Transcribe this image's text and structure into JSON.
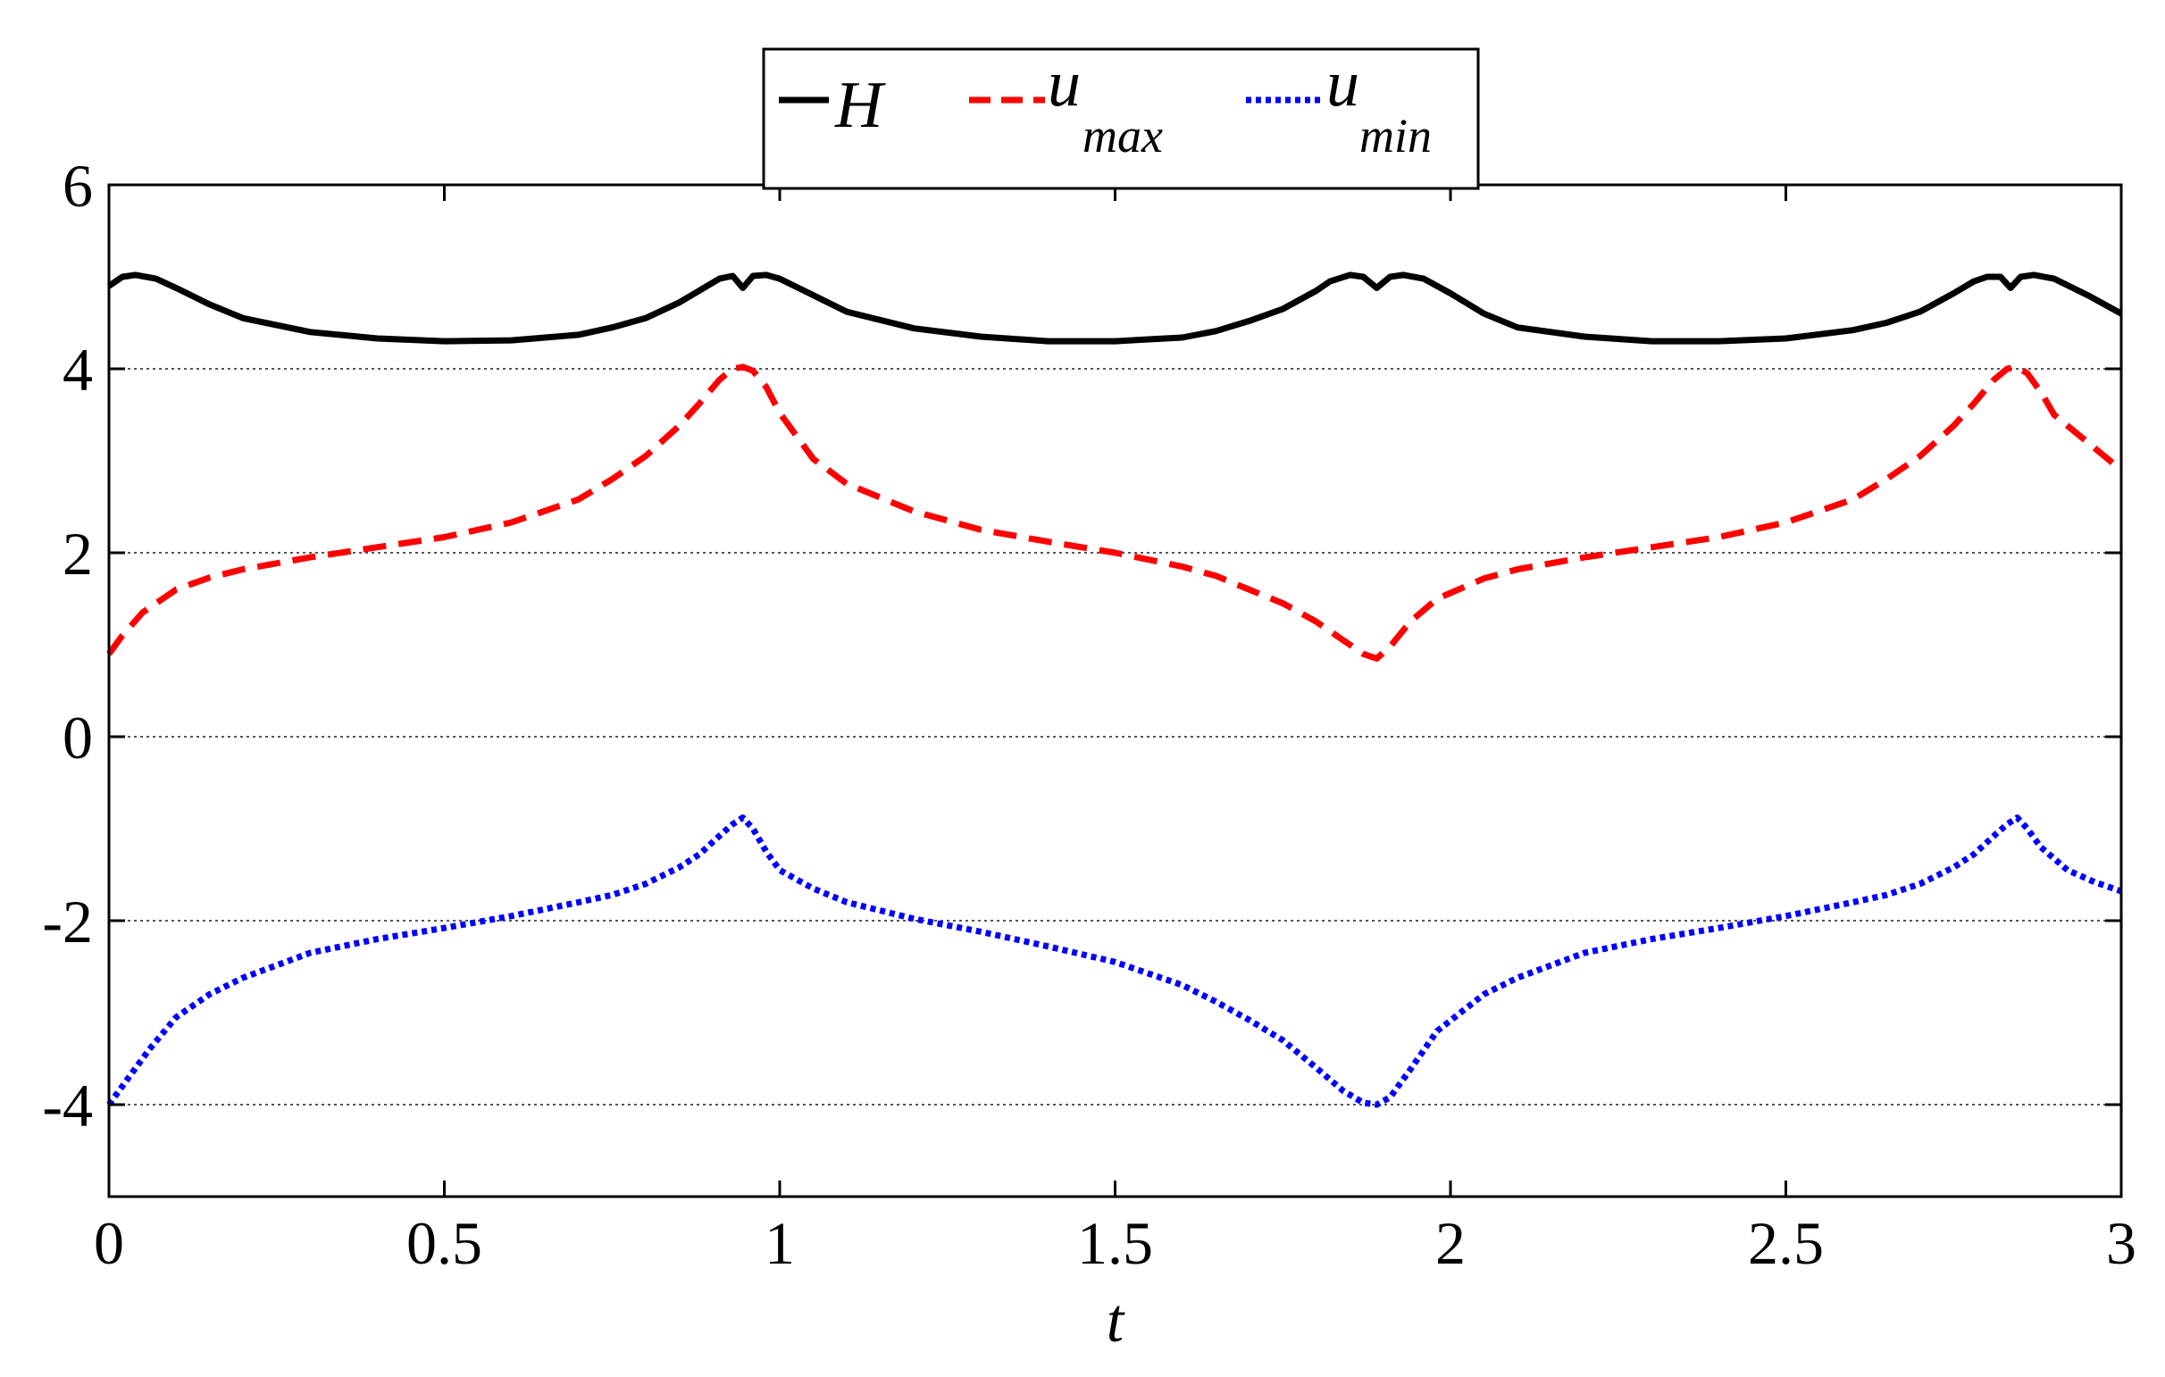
{
  "chart_data": {
    "type": "line",
    "title": "",
    "xlabel": "t",
    "ylabel": "",
    "xlim": [
      0,
      3
    ],
    "ylim": [
      -5,
      6
    ],
    "xticks": [
      0,
      0.5,
      1,
      1.5,
      2,
      2.5,
      3
    ],
    "xtick_labels": [
      "0",
      "0.5",
      "1",
      "1.5",
      "2",
      "2.5",
      "3"
    ],
    "yticks": [
      -4,
      -2,
      0,
      2,
      4,
      6
    ],
    "ytick_labels": [
      "-4",
      "-2",
      "0",
      "2",
      "4",
      "6"
    ],
    "gridlines_y": [
      -4,
      -2,
      0,
      2,
      4
    ],
    "grid": "horizontal dotted",
    "legend": {
      "placement": "top-center, outside axes",
      "entries": [
        {
          "label": "H",
          "sub": "",
          "color": "#000000",
          "style": "solid"
        },
        {
          "label": "u",
          "sub": "max",
          "color": "#ff0000",
          "style": "dashed"
        },
        {
          "label": "u",
          "sub": "min",
          "color": "#0000ff",
          "style": "dotted"
        }
      ]
    },
    "series": [
      {
        "name": "H",
        "color": "#000000",
        "style": "solid",
        "x": [
          0,
          0.02,
          0.04,
          0.07,
          0.1,
          0.15,
          0.2,
          0.3,
          0.4,
          0.5,
          0.6,
          0.7,
          0.75,
          0.8,
          0.85,
          0.88,
          0.91,
          0.93,
          0.945,
          0.96,
          0.98,
          1.0,
          1.05,
          1.1,
          1.2,
          1.3,
          1.4,
          1.5,
          1.6,
          1.65,
          1.7,
          1.75,
          1.8,
          1.82,
          1.85,
          1.87,
          1.89,
          1.91,
          1.93,
          1.96,
          2.0,
          2.05,
          2.1,
          2.2,
          2.3,
          2.4,
          2.5,
          2.6,
          2.65,
          2.7,
          2.75,
          2.78,
          2.8,
          2.82,
          2.835,
          2.85,
          2.87,
          2.9,
          2.95,
          3.0
        ],
        "y": [
          4.9,
          5.0,
          5.02,
          4.98,
          4.88,
          4.7,
          4.55,
          4.4,
          4.33,
          4.3,
          4.31,
          4.37,
          4.45,
          4.55,
          4.72,
          4.85,
          4.98,
          5.01,
          4.88,
          5.01,
          5.02,
          4.98,
          4.8,
          4.62,
          4.44,
          4.35,
          4.3,
          4.3,
          4.34,
          4.41,
          4.52,
          4.65,
          4.85,
          4.95,
          5.02,
          5.0,
          4.88,
          5.0,
          5.02,
          4.98,
          4.82,
          4.6,
          4.45,
          4.35,
          4.3,
          4.3,
          4.33,
          4.42,
          4.5,
          4.62,
          4.82,
          4.95,
          5.0,
          5.0,
          4.88,
          5.0,
          5.02,
          4.98,
          4.8,
          4.6
        ]
      },
      {
        "name": "u_max",
        "color": "#ff0000",
        "style": "dashed",
        "x": [
          0,
          0.02,
          0.05,
          0.1,
          0.15,
          0.2,
          0.3,
          0.4,
          0.5,
          0.6,
          0.7,
          0.75,
          0.8,
          0.85,
          0.88,
          0.91,
          0.93,
          0.945,
          0.96,
          0.98,
          1.0,
          1.05,
          1.1,
          1.2,
          1.3,
          1.4,
          1.5,
          1.6,
          1.65,
          1.7,
          1.75,
          1.8,
          1.84,
          1.87,
          1.89,
          1.91,
          1.94,
          1.98,
          2.05,
          2.1,
          2.2,
          2.3,
          2.4,
          2.5,
          2.6,
          2.65,
          2.7,
          2.75,
          2.78,
          2.81,
          2.83,
          2.845,
          2.86,
          2.88,
          2.9,
          2.95,
          3.0
        ],
        "y": [
          0.9,
          1.1,
          1.35,
          1.6,
          1.73,
          1.82,
          1.95,
          2.06,
          2.17,
          2.33,
          2.58,
          2.8,
          3.05,
          3.38,
          3.62,
          3.88,
          4.0,
          4.02,
          3.98,
          3.8,
          3.52,
          3.02,
          2.75,
          2.45,
          2.25,
          2.12,
          2.0,
          1.85,
          1.75,
          1.6,
          1.45,
          1.25,
          1.05,
          0.9,
          0.85,
          0.98,
          1.25,
          1.5,
          1.72,
          1.82,
          1.95,
          2.06,
          2.17,
          2.33,
          2.58,
          2.8,
          3.05,
          3.38,
          3.62,
          3.88,
          4.0,
          4.02,
          3.95,
          3.75,
          3.5,
          3.2,
          2.9
        ]
      },
      {
        "name": "u_min",
        "color": "#0000ff",
        "style": "dotted",
        "x": [
          0,
          0.03,
          0.06,
          0.1,
          0.15,
          0.2,
          0.3,
          0.4,
          0.5,
          0.6,
          0.7,
          0.75,
          0.8,
          0.85,
          0.88,
          0.91,
          0.93,
          0.945,
          0.96,
          0.98,
          1.0,
          1.05,
          1.1,
          1.2,
          1.3,
          1.4,
          1.5,
          1.6,
          1.65,
          1.7,
          1.75,
          1.8,
          1.84,
          1.87,
          1.89,
          1.91,
          1.94,
          1.98,
          2.05,
          2.1,
          2.2,
          2.3,
          2.4,
          2.5,
          2.6,
          2.65,
          2.7,
          2.75,
          2.78,
          2.81,
          2.83,
          2.845,
          2.86,
          2.88,
          2.92,
          2.96,
          3.0
        ],
        "y": [
          -4.0,
          -3.7,
          -3.4,
          -3.05,
          -2.8,
          -2.62,
          -2.35,
          -2.2,
          -2.08,
          -1.95,
          -1.8,
          -1.72,
          -1.6,
          -1.42,
          -1.28,
          -1.08,
          -0.95,
          -0.88,
          -1.0,
          -1.25,
          -1.45,
          -1.65,
          -1.8,
          -1.98,
          -2.12,
          -2.28,
          -2.45,
          -2.7,
          -2.88,
          -3.08,
          -3.3,
          -3.6,
          -3.85,
          -3.98,
          -4.0,
          -3.92,
          -3.62,
          -3.2,
          -2.8,
          -2.62,
          -2.35,
          -2.2,
          -2.08,
          -1.95,
          -1.8,
          -1.72,
          -1.6,
          -1.42,
          -1.28,
          -1.08,
          -0.95,
          -0.88,
          -1.0,
          -1.2,
          -1.45,
          -1.58,
          -1.68
        ]
      }
    ]
  }
}
